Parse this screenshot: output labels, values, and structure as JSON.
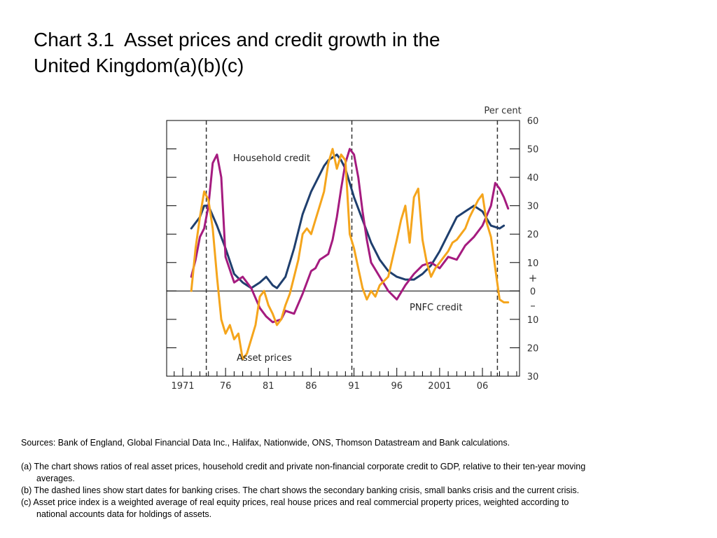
{
  "slide": {
    "title_line1": "Chart 3.1  Asset prices and credit growth in the",
    "title_line2": "United Kingdom(a)(b)(c)"
  },
  "chart_data": {
    "type": "line",
    "ylabel": "Per cent",
    "ylim": [
      -30,
      60
    ],
    "y_ticks": [
      -30,
      -20,
      -10,
      0,
      10,
      20,
      30,
      40,
      50,
      60
    ],
    "y_tick_labels": [
      "30",
      "20",
      "10",
      "0",
      "10",
      "20",
      "30",
      "40",
      "50",
      "60"
    ],
    "y_sign_plus": "+",
    "y_sign_minus": "–",
    "xlim": [
      1970,
      2010
    ],
    "x_ticks": [
      1971,
      1976,
      1981,
      1986,
      1991,
      1996,
      2001,
      2006
    ],
    "x_tick_labels": [
      "1971",
      "76",
      "81",
      "86",
      "91",
      "96",
      "2001",
      "06"
    ],
    "dashed_lines": [
      1973.75,
      1990.75,
      2007.75
    ],
    "series": [
      {
        "name": "Household credit",
        "color": "#1f3f6e",
        "x": [
          1972,
          1973,
          1973.5,
          1974,
          1975,
          1976,
          1977,
          1978,
          1979,
          1980,
          1980.75,
          1981.5,
          1982,
          1983,
          1984,
          1985,
          1986,
          1987,
          1987.5,
          1988,
          1988.5,
          1989,
          1989.5,
          1990,
          1991,
          1992,
          1993,
          1994,
          1995,
          1996,
          1997,
          1998,
          1999,
          2000,
          2001,
          2002,
          2003,
          2004,
          2005,
          2006,
          2007,
          2008,
          2008.5
        ],
        "y": [
          22,
          26,
          30,
          30,
          23,
          15,
          6,
          3,
          1,
          3,
          5,
          2,
          1,
          5,
          15,
          27,
          35,
          41,
          44,
          46,
          47,
          48,
          46,
          43,
          33,
          25,
          17,
          11,
          7,
          5,
          4,
          4,
          6,
          9,
          14,
          20,
          26,
          28,
          30,
          28,
          23,
          22,
          23
        ]
      },
      {
        "name": "PNFC credit",
        "color": "#a51b7f",
        "x": [
          1972,
          1972.5,
          1973,
          1973.5,
          1974,
          1974.5,
          1975,
          1975.5,
          1976,
          1977,
          1978,
          1979,
          1980,
          1980.75,
          1981.5,
          1982.5,
          1983,
          1984,
          1985,
          1986,
          1986.5,
          1987,
          1987.5,
          1988,
          1988.5,
          1989,
          1989.5,
          1990,
          1990.5,
          1991,
          1991.5,
          1992,
          1992.5,
          1993,
          1994,
          1995,
          1996,
          1997,
          1998,
          1999,
          2000,
          2001,
          2002,
          2003,
          2004,
          2005,
          2006,
          2007,
          2007.5,
          2008,
          2008.5,
          2009
        ],
        "y": [
          5,
          11,
          19,
          22,
          30,
          45,
          48,
          40,
          12,
          3,
          5,
          1,
          -6,
          -9,
          -11,
          -10,
          -7,
          -8,
          -1,
          7,
          8,
          11,
          12,
          13,
          18,
          26,
          36,
          45,
          50,
          48,
          40,
          28,
          18,
          10,
          5,
          0,
          -3,
          2,
          6,
          9,
          10,
          8,
          12,
          11,
          16,
          19,
          23,
          30,
          38,
          36,
          33,
          29
        ]
      },
      {
        "name": "Asset prices",
        "color": "#f5a51c",
        "x": [
          1972,
          1972.5,
          1973,
          1973.5,
          1974,
          1974.5,
          1975,
          1975.5,
          1976,
          1976.5,
          1977,
          1977.5,
          1978,
          1978.5,
          1979,
          1979.5,
          1980,
          1980.5,
          1981,
          1981.5,
          1982,
          1982.5,
          1983,
          1983.5,
          1984,
          1984.5,
          1985,
          1985.5,
          1986,
          1986.5,
          1987,
          1987.5,
          1988,
          1988.5,
          1989,
          1989.5,
          1990,
          1990.5,
          1991,
          1991.5,
          1992,
          1992.5,
          1993,
          1993.5,
          1994,
          1995,
          1996,
          1996.5,
          1997,
          1997.5,
          1998,
          1998.5,
          1999,
          1999.5,
          2000,
          2000.5,
          2001,
          2001.5,
          2002,
          2002.5,
          2003,
          2003.5,
          2004,
          2004.5,
          2005,
          2005.5,
          2006,
          2006.5,
          2007,
          2007.5,
          2008,
          2008.5,
          2009
        ],
        "y": [
          0,
          15,
          26,
          35,
          32,
          22,
          5,
          -10,
          -15,
          -12,
          -17,
          -15,
          -24,
          -22,
          -17,
          -12,
          -2,
          0,
          -5,
          -8,
          -12,
          -10,
          -5,
          -1,
          5,
          11,
          20,
          22,
          20,
          25,
          30,
          35,
          45,
          50,
          43,
          48,
          46,
          20,
          15,
          8,
          1,
          -3,
          0,
          -2,
          2,
          5,
          18,
          25,
          30,
          17,
          33,
          36,
          18,
          10,
          5,
          8,
          10,
          12,
          14,
          17,
          18,
          20,
          22,
          26,
          29,
          32,
          34,
          24,
          19,
          8,
          -3,
          -4,
          -4
        ]
      }
    ],
    "annotations": [
      {
        "text": "Household credit",
        "series": 0
      },
      {
        "text": "PNFC credit",
        "series": 1
      },
      {
        "text": "Asset prices",
        "series": 2
      }
    ]
  },
  "notes": {
    "sources": "Sources:  Bank of England, Global Financial Data Inc., Halifax, Nationwide, ONS, Thomson Datastream and Bank calculations.",
    "a1": "(a) The chart shows ratios of real asset prices, household credit and private non-financial corporate credit to GDP, relative to their ten-year moving",
    "a2": "averages.",
    "b": "(b) The dashed lines show start dates for banking crises.  The chart shows the secondary banking crisis, small banks crisis and the current crisis.",
    "c1": "(c) Asset price index is a weighted average of real equity prices, real house prices and real commercial property prices, weighted according to",
    "c2": "national accounts data for holdings of assets."
  }
}
